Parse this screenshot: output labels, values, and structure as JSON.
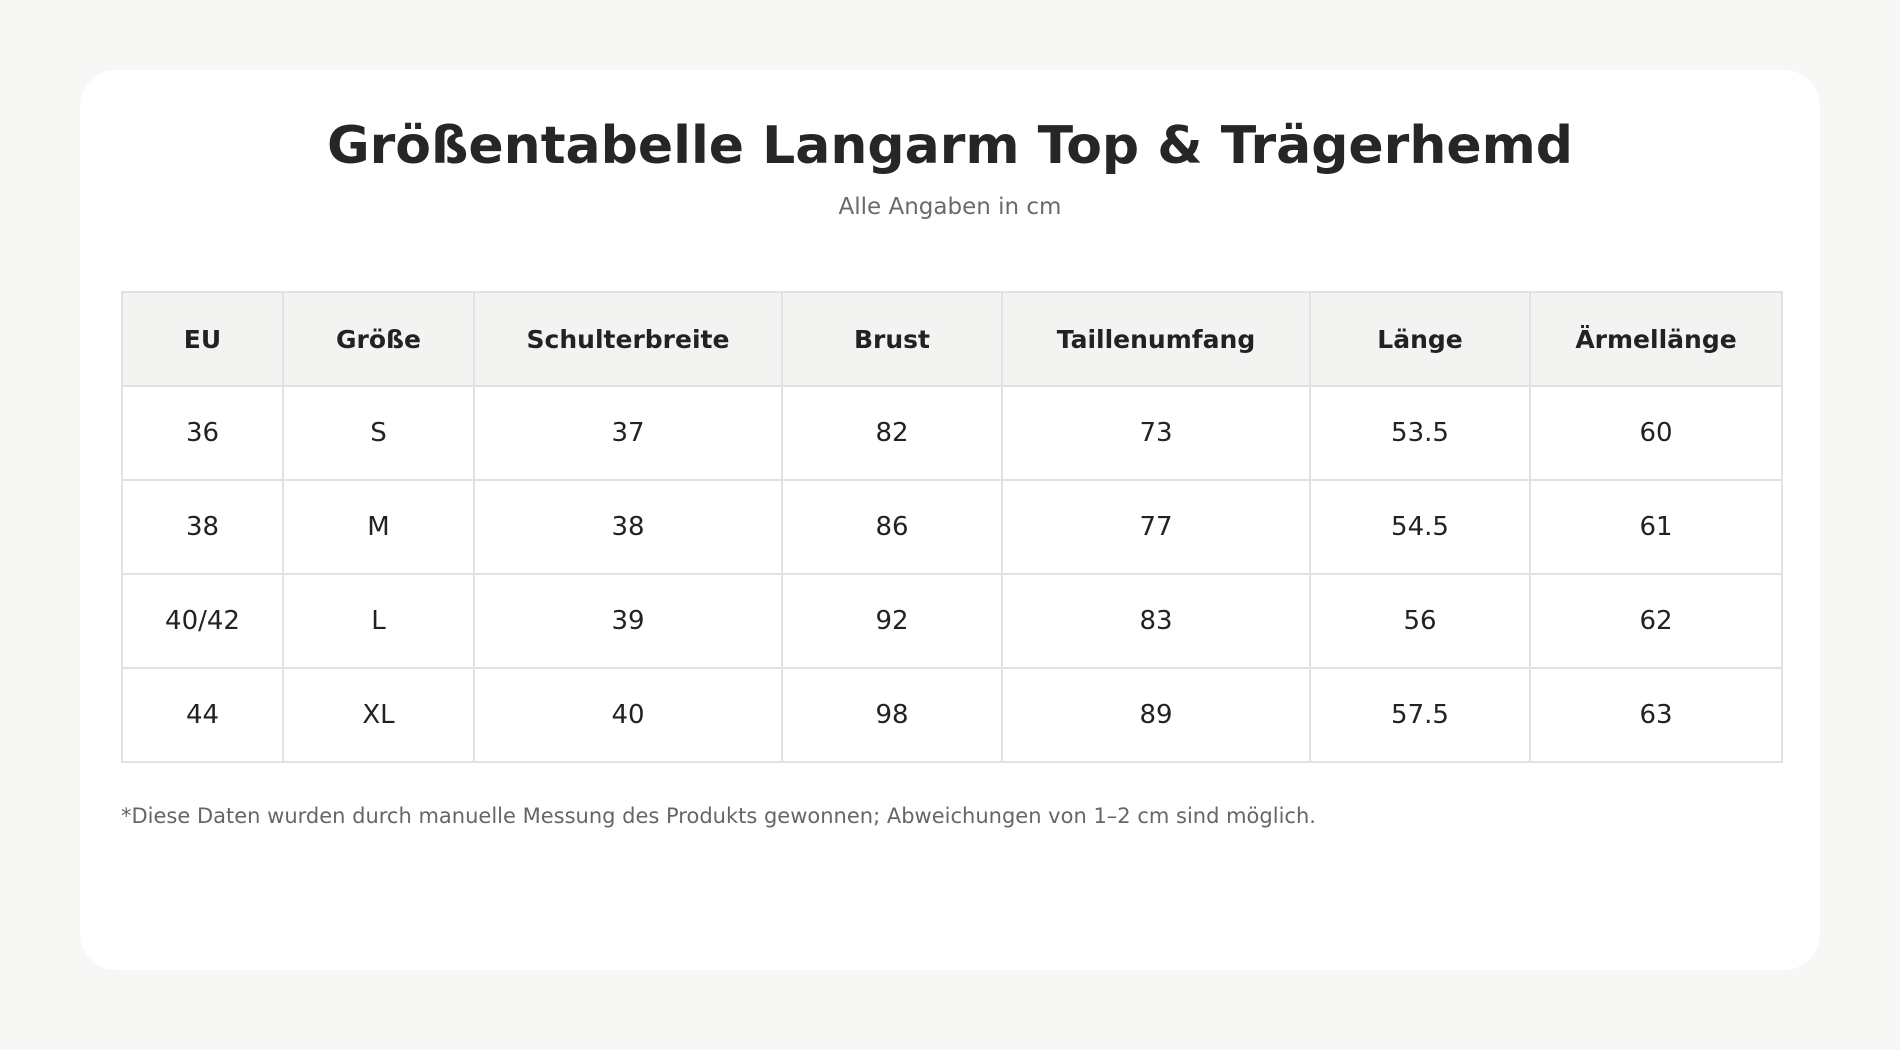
{
  "header": {
    "title": "Größentabelle Langarm Top & Trägerhemd",
    "subtitle": "Alle Angaben in cm"
  },
  "table": {
    "columns": [
      "EU",
      "Größe",
      "Schulterbreite",
      "Brust",
      "Taillenumfang",
      "Länge",
      "Ärmellänge"
    ],
    "rows": [
      [
        "36",
        "S",
        "37",
        "82",
        "73",
        "53.5",
        "60"
      ],
      [
        "38",
        "M",
        "38",
        "86",
        "77",
        "54.5",
        "61"
      ],
      [
        "40/42",
        "L",
        "39",
        "92",
        "83",
        "56",
        "62"
      ],
      [
        "44",
        "XL",
        "40",
        "98",
        "89",
        "57.5",
        "63"
      ]
    ]
  },
  "footnote": "*Diese Daten wurden durch manuelle Messung des Produkts gewonnen; Abweichungen von 1–2 cm sind möglich."
}
